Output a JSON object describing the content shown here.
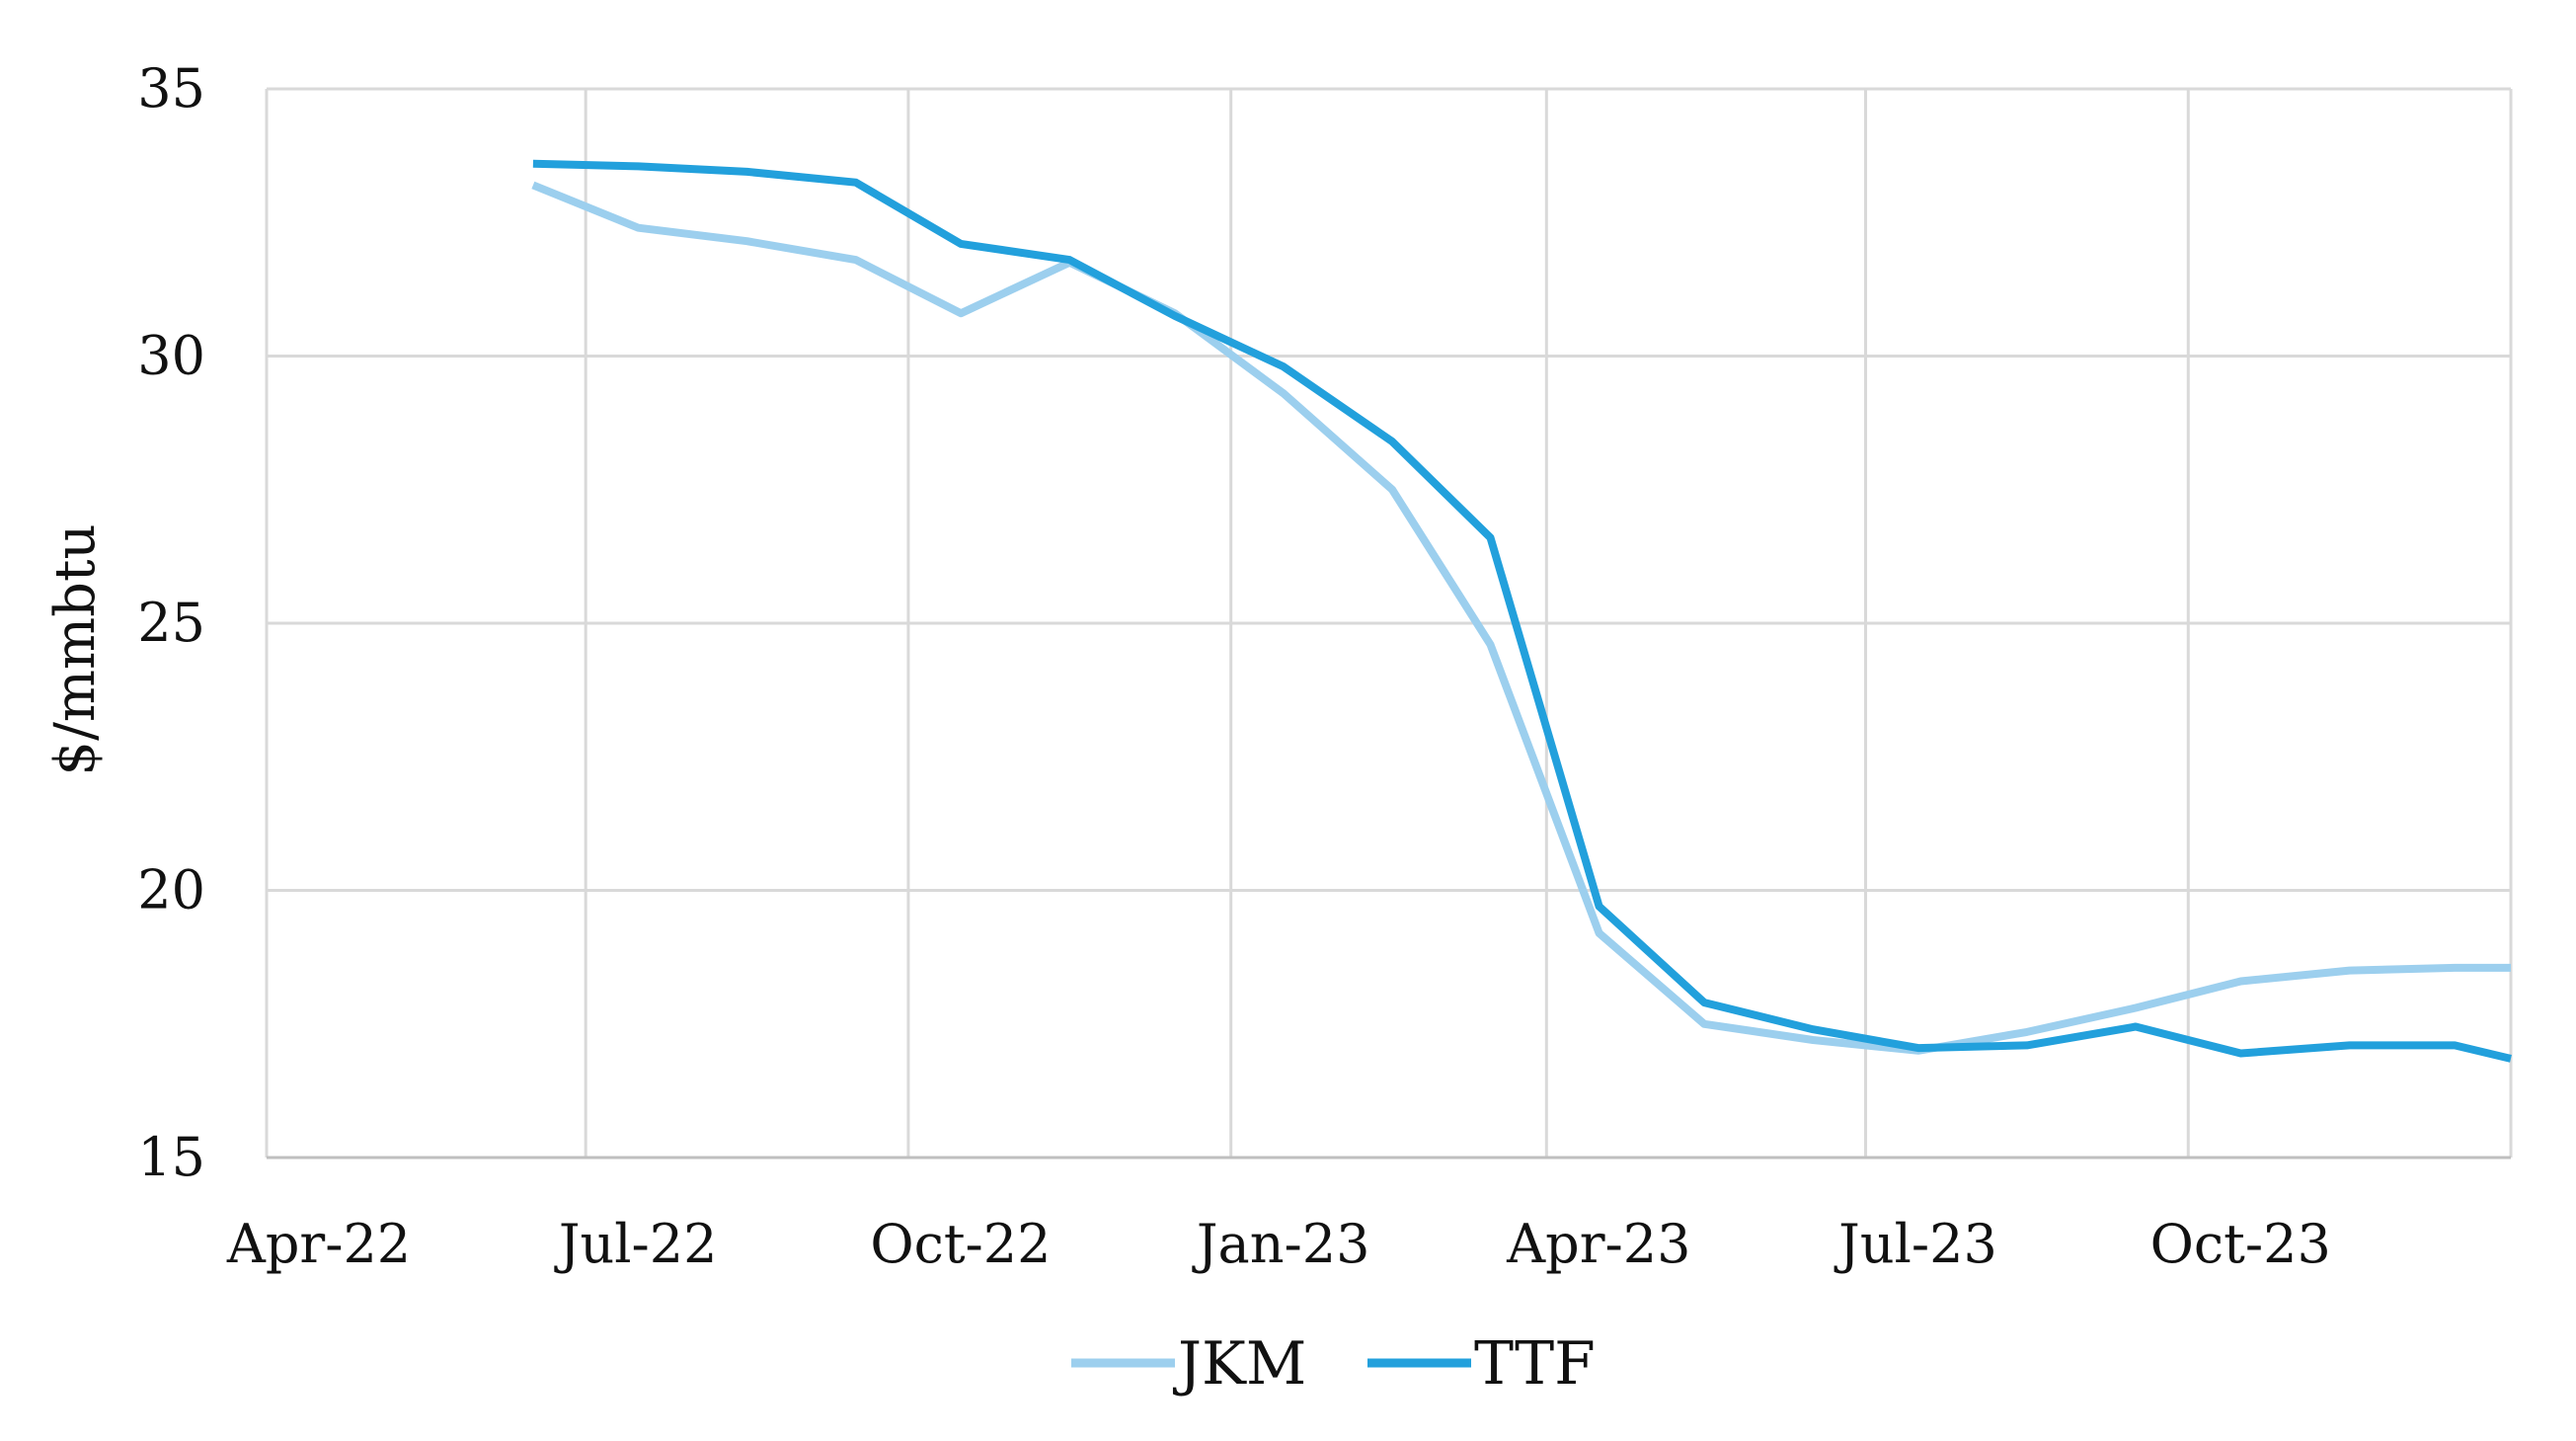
{
  "chart_data": {
    "type": "line",
    "title": "",
    "xlabel": "",
    "ylabel": "$/mmbtu",
    "ylim": [
      15,
      35
    ],
    "yticks": [
      15,
      20,
      25,
      30,
      35
    ],
    "x_range": [
      "2022-04-01",
      "2024-01-01"
    ],
    "x_ticks": [
      {
        "date": "2022-04-01",
        "label": "Apr-22"
      },
      {
        "date": "2022-07-01",
        "label": "Jul-22"
      },
      {
        "date": "2022-10-01",
        "label": "Oct-22"
      },
      {
        "date": "2023-01-01",
        "label": "Jan-23"
      },
      {
        "date": "2023-04-01",
        "label": "Apr-23"
      },
      {
        "date": "2023-07-01",
        "label": "Jul-23"
      },
      {
        "date": "2023-10-01",
        "label": "Oct-23"
      }
    ],
    "x": [
      "2022-06-16",
      "2022-07-16",
      "2022-08-16",
      "2022-09-16",
      "2022-10-16",
      "2022-11-16",
      "2022-12-16",
      "2023-01-16",
      "2023-02-16",
      "2023-03-16",
      "2023-04-16",
      "2023-05-16",
      "2023-06-16",
      "2023-07-16",
      "2023-08-16",
      "2023-09-16",
      "2023-10-16",
      "2023-11-16",
      "2023-12-16",
      "2024-01-01"
    ],
    "grid": true,
    "legend_position": "bottom",
    "series": [
      {
        "name": "JKM",
        "color": "#9ccfee",
        "values": [
          33.2,
          32.4,
          32.15,
          31.8,
          30.8,
          31.75,
          30.8,
          29.3,
          27.5,
          24.6,
          19.2,
          17.5,
          17.2,
          17.0,
          17.35,
          17.8,
          18.3,
          18.5,
          18.55,
          18.55
        ]
      },
      {
        "name": "TTF",
        "color": "#22a0dc",
        "values": [
          33.6,
          33.55,
          33.45,
          33.25,
          32.1,
          31.8,
          30.75,
          29.8,
          28.4,
          26.6,
          19.7,
          17.9,
          17.4,
          17.05,
          17.1,
          17.45,
          16.95,
          17.1,
          17.1,
          16.85
        ]
      }
    ]
  }
}
